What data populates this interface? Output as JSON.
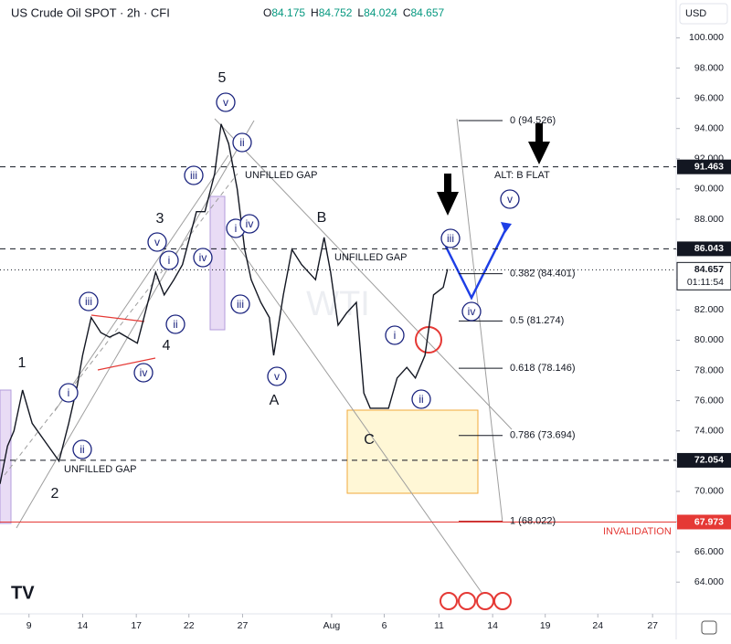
{
  "chart_data": {
    "type": "line",
    "title": "US Crude Oil SPOT · 2h · CFI",
    "legend_values": [
      {
        "label": "O",
        "value": 84.175
      },
      {
        "label": "H",
        "value": 84.752
      },
      {
        "label": "L",
        "value": 84.024
      },
      {
        "label": "C",
        "value": 84.657
      }
    ],
    "currency": "USD",
    "watermark": "WTI",
    "series": [
      {
        "color": "#131722",
        "x": [
          0,
          0.7,
          1.3,
          2.1,
          3.0,
          4.3,
          5.5,
          6.4,
          7.2,
          7.7,
          8.5,
          9.4,
          10.2,
          11.1,
          12.8,
          13.6,
          14.5,
          15.3,
          16.2,
          17.0,
          18.3,
          19.1,
          20.0,
          20.6,
          21.3,
          22.1,
          22.8,
          23.4,
          24.3,
          25.1,
          25.5,
          26.4,
          27.2,
          28.1,
          29.4,
          30.2,
          30.8,
          31.5,
          32.3,
          33.2,
          33.9,
          34.5,
          35.3,
          36.2,
          37.0,
          37.9,
          38.7,
          39.6,
          40.4,
          41.3,
          41.7
        ],
        "values": [
          70.5,
          73,
          74,
          76.7,
          74.5,
          73.2,
          72,
          74.5,
          77,
          79,
          81.5,
          80.5,
          80.2,
          80.5,
          79.8,
          82,
          84.5,
          83,
          84,
          85,
          88.5,
          88.5,
          91,
          94.3,
          93,
          90,
          86,
          84,
          82.5,
          81.5,
          79,
          83,
          86,
          85,
          84,
          86.8,
          84.5,
          81,
          81.8,
          82.5,
          76.5,
          75.5,
          75.5,
          75.5,
          77.5,
          78.2,
          77.5,
          79,
          83,
          83.5,
          84.7
        ]
      }
    ],
    "xlim": [
      0,
      63
    ],
    "ylim": [
      61.9,
      102.5
    ],
    "xticks": [
      {
        "value": 2.7,
        "label": "9"
      },
      {
        "value": 7.7,
        "label": "14"
      },
      {
        "value": 12.7,
        "label": "17"
      },
      {
        "value": 17.6,
        "label": "22"
      },
      {
        "value": 22.6,
        "label": "27"
      },
      {
        "value": 30.9,
        "label": "Aug"
      },
      {
        "value": 35.8,
        "label": "6"
      },
      {
        "value": 40.9,
        "label": "11"
      },
      {
        "value": 45.9,
        "label": "14"
      },
      {
        "value": 50.8,
        "label": "19"
      },
      {
        "value": 55.7,
        "label": "24"
      },
      {
        "value": 60.8,
        "label": "27"
      }
    ],
    "yticks": [
      {
        "value": 64,
        "label": "64.000"
      },
      {
        "value": 66,
        "label": "66.000"
      },
      {
        "value": 68,
        "label": "68.000"
      },
      {
        "value": 70,
        "label": "70.000"
      },
      {
        "value": 72,
        "label": "72.000"
      },
      {
        "value": 74,
        "label": "74.000"
      },
      {
        "value": 76,
        "label": "76.000"
      },
      {
        "value": 78,
        "label": "78.000"
      },
      {
        "value": 80,
        "label": "80.000"
      },
      {
        "value": 82,
        "label": "82.000"
      },
      {
        "value": 84,
        "label": "84.000"
      },
      {
        "value": 86,
        "label": "86.000"
      },
      {
        "value": 88,
        "label": "88.000"
      },
      {
        "value": 90,
        "label": "90.000"
      },
      {
        "value": 92,
        "label": "92.000"
      },
      {
        "value": 94,
        "label": "94.000"
      },
      {
        "value": 96,
        "label": "96.000"
      },
      {
        "value": 98,
        "label": "98.000"
      },
      {
        "value": 100,
        "label": "100.000"
      }
    ],
    "price_lines": [
      91.463,
      86.043,
      72.054
    ],
    "invalidation_level": 67.973,
    "last_price": 84.657,
    "countdown": "01:11:54",
    "fib_levels": [
      {
        "value": 94.526,
        "label": "0 (94.526)"
      },
      {
        "value": 84.401,
        "label": "0.382 (84.401)"
      },
      {
        "value": 81.274,
        "label": "0.5 (81.274)"
      },
      {
        "value": 78.146,
        "label": "0.618 (78.146)"
      },
      {
        "value": 73.694,
        "label": "0.786 (73.694)"
      },
      {
        "value": 68.022,
        "label": "1 (68.022)"
      }
    ],
    "wave_labels": [
      "1",
      "2",
      "3",
      "4",
      "5",
      "A",
      "B",
      "C"
    ],
    "sub_wave_labels": [
      "i",
      "ii",
      "iii",
      "iv",
      "v",
      "i",
      "ii",
      "iii",
      "iv",
      "v",
      "ii",
      "i",
      "iv",
      "iii",
      "v",
      "i",
      "ii",
      "iii",
      "iv",
      "v"
    ],
    "annotations": [
      "UNFILLED GAP",
      "UNFILLED GAP",
      "UNFILLED GAP",
      "ALT: B FLAT",
      "INVALIDATION"
    ]
  }
}
